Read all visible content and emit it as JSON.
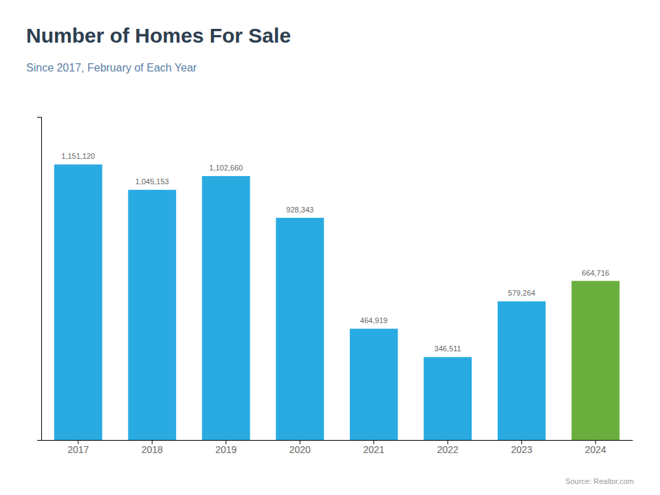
{
  "chart_data": {
    "type": "bar",
    "title": "Number of Homes For Sale",
    "subtitle": "Since 2017, February of Each Year",
    "source": "Source: Realtor.com",
    "categories": [
      "2017",
      "2018",
      "2019",
      "2020",
      "2021",
      "2022",
      "2023",
      "2024"
    ],
    "values": [
      1151120,
      1045153,
      1102660,
      928343,
      464919,
      346511,
      579264,
      664716
    ],
    "value_labels": [
      "1,151,120",
      "1,045,153",
      "1,102,660",
      "928,343",
      "464,919",
      "346,511",
      "579,264",
      "664,716"
    ],
    "colors": [
      "#29ABE2",
      "#29ABE2",
      "#29ABE2",
      "#29ABE2",
      "#29ABE2",
      "#29ABE2",
      "#29ABE2",
      "#6AAF3D"
    ],
    "ylim": [
      0,
      1350000
    ],
    "data_labels": true,
    "tick_labels": "x",
    "grid": false
  }
}
